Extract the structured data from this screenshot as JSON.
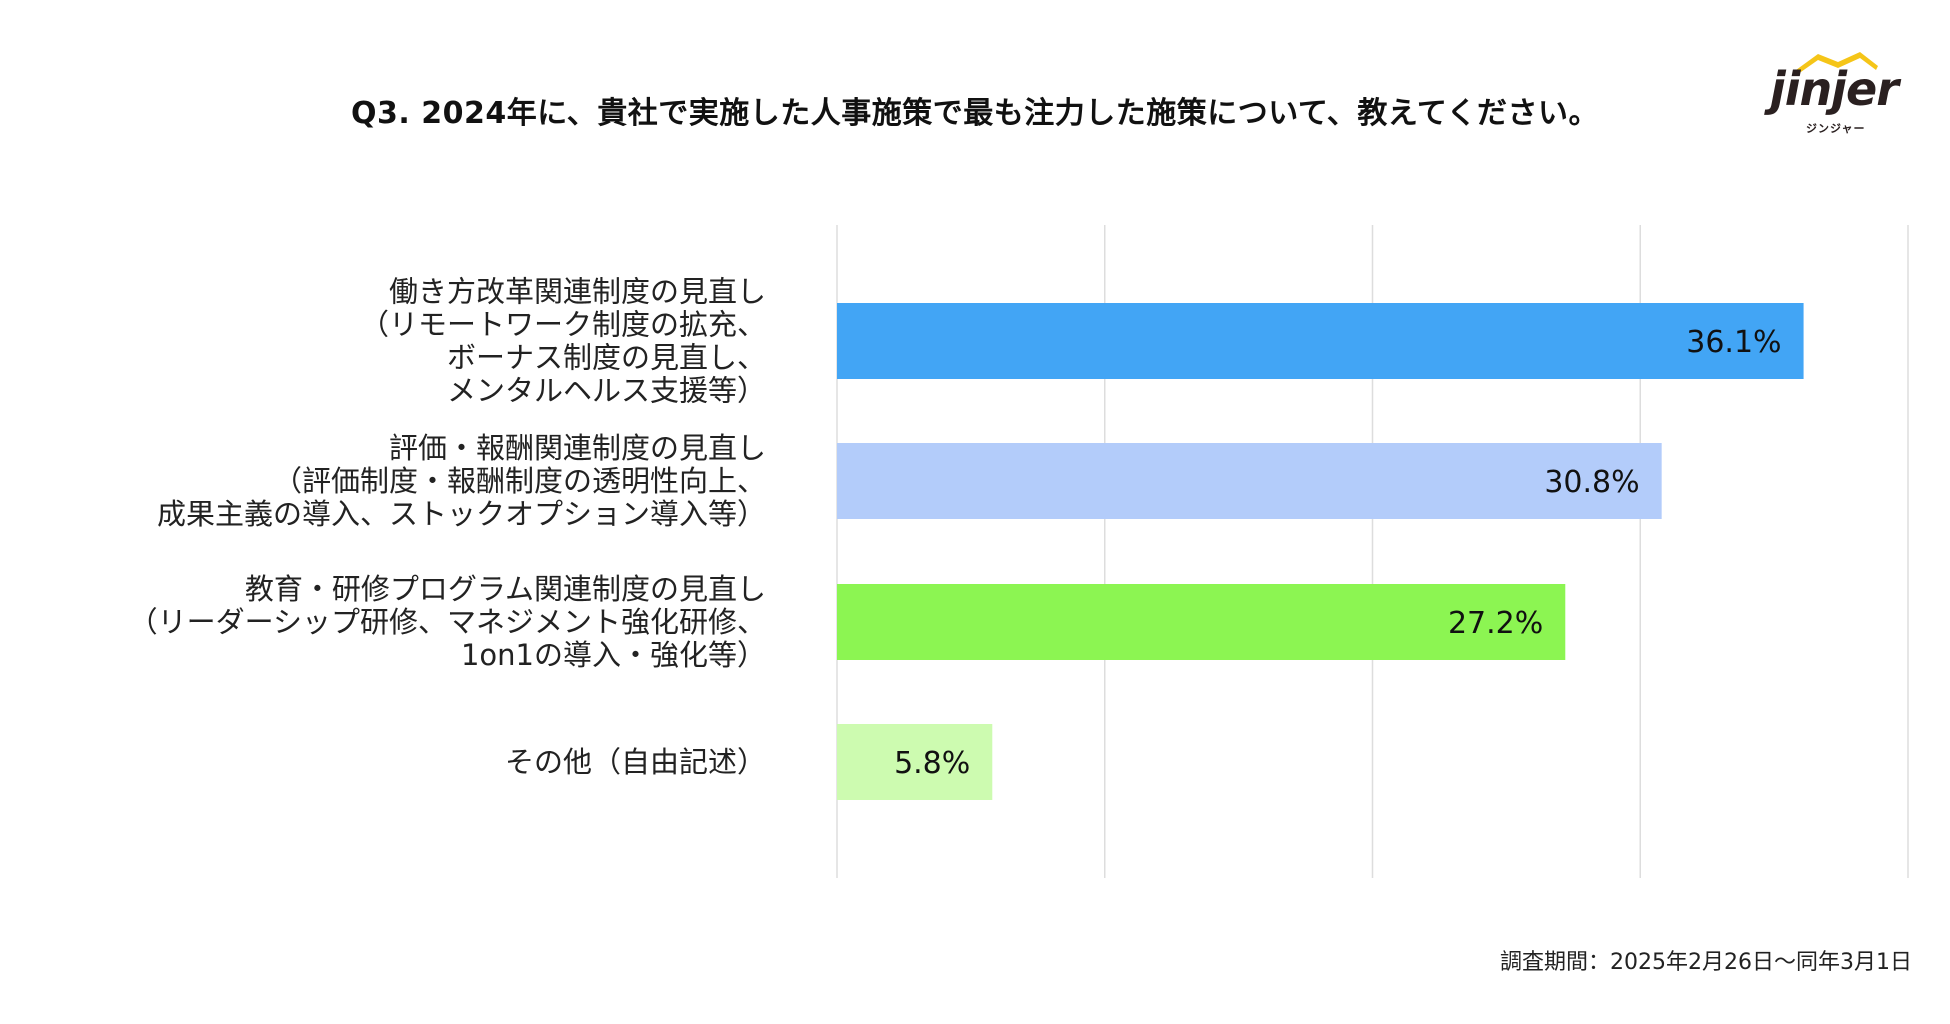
{
  "title": "Q3. 2024年に、貴社で実施した人事施策で最も注力した施策について、教えてください。",
  "logo": {
    "name": "jinjer",
    "kana": "ジンジャー"
  },
  "footnote": "調査期間：2025年2月26日〜同年3月1日",
  "colors": {
    "bar_1": "#42A5F5",
    "bar_2": "#B3CCFA",
    "bar_3": "#8CF552",
    "bar_4": "#CDFBB0",
    "grid": "#DDDDDD",
    "logo_accent": "#F5C518"
  },
  "chart_data": {
    "type": "bar",
    "orientation": "horizontal",
    "categories": [
      [
        "働き方改革関連制度の見直し",
        "（リモートワーク制度の拡充、",
        "ボーナス制度の見直し、",
        "メンタルヘルス支援等）"
      ],
      [
        "評価・報酬関連制度の見直し",
        "（評価制度・報酬制度の透明性向上、",
        "成果主義の導入、ストックオプション導入等）"
      ],
      [
        "教育・研修プログラム関連制度の見直し",
        "（リーダーシップ研修、マネジメント強化研修、",
        "1on1の導入・強化等）"
      ],
      [
        "その他（自由記述）"
      ]
    ],
    "values": [
      36.1,
      30.8,
      27.2,
      5.8
    ],
    "value_labels": [
      "36.1%",
      "30.8%",
      "27.2%",
      "5.8%"
    ],
    "xlim": [
      0,
      40
    ],
    "unit": "%",
    "grid": true,
    "legend": "none"
  }
}
